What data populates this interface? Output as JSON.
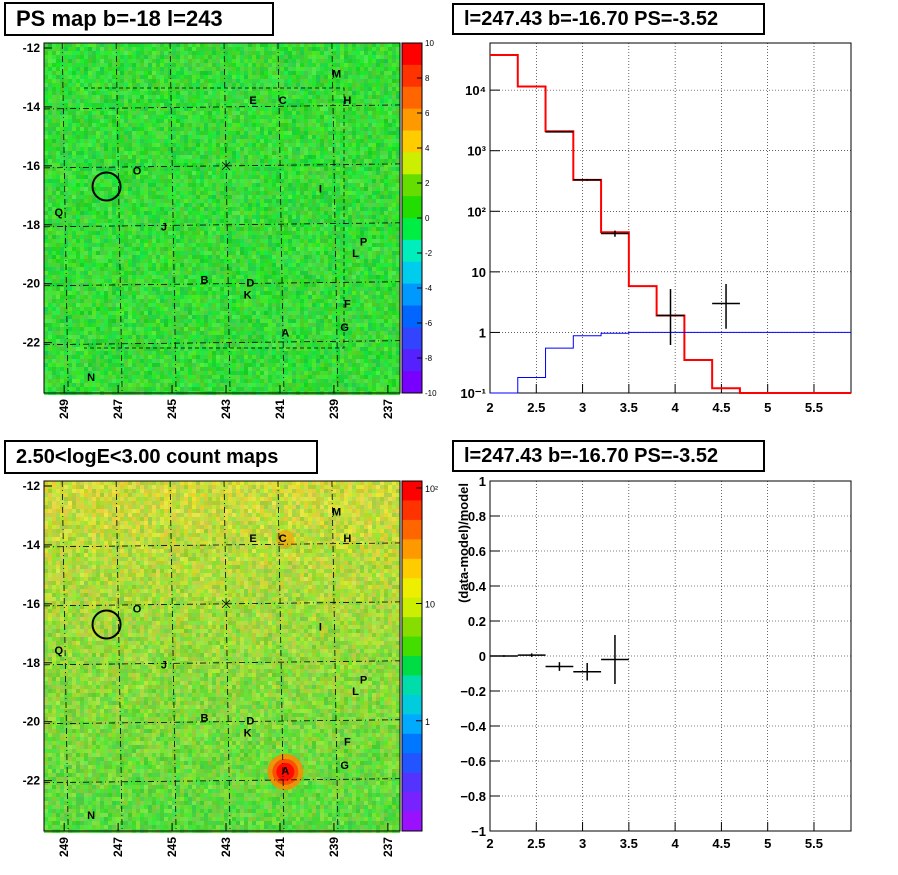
{
  "panels": {
    "ps_map_title": "PS map b=-18 l=243",
    "spectrum_title": "l=247.43 b=-16.70 PS=-3.52",
    "count_map_title": "2.50<logE<3.00 count maps",
    "residual_title": "l=247.43 b=-16.70 PS=-3.52"
  },
  "maps": {
    "x_ticks": [
      "249",
      "247",
      "245",
      "243",
      "241",
      "239",
      "237"
    ],
    "y_ticks": [
      "-12",
      "-14",
      "-16",
      "-18",
      "-20",
      "-22"
    ],
    "ps_colorbar_ticks": [
      "10",
      "8",
      "6",
      "4",
      "2",
      "0",
      "-2",
      "-4",
      "-6",
      "-8",
      "-10"
    ],
    "count_colorbar_ticks": [
      "10²",
      "10",
      "1"
    ],
    "sources": [
      {
        "label": "M",
        "l": 238.9,
        "b": -12.9
      },
      {
        "label": "E",
        "l": 242.0,
        "b": -13.8
      },
      {
        "label": "C",
        "l": 240.9,
        "b": -13.8
      },
      {
        "label": "H",
        "l": 238.5,
        "b": -13.8
      },
      {
        "label": "O",
        "l": 246.3,
        "b": -16.2
      },
      {
        "label": "I",
        "l": 239.5,
        "b": -16.8
      },
      {
        "label": "Q",
        "l": 249.2,
        "b": -17.6
      },
      {
        "label": "J",
        "l": 245.3,
        "b": -18.1
      },
      {
        "label": "P",
        "l": 237.9,
        "b": -18.6
      },
      {
        "label": "L",
        "l": 238.2,
        "b": -19.0
      },
      {
        "label": "B",
        "l": 243.8,
        "b": -19.9
      },
      {
        "label": "D",
        "l": 242.1,
        "b": -20.0
      },
      {
        "label": "K",
        "l": 242.2,
        "b": -20.4
      },
      {
        "label": "F",
        "l": 238.5,
        "b": -20.7
      },
      {
        "label": "G",
        "l": 238.6,
        "b": -21.5
      },
      {
        "label": "A",
        "l": 240.8,
        "b": -21.7
      },
      {
        "label": "N",
        "l": 248.0,
        "b": -23.2
      }
    ],
    "circle": {
      "l": 247.43,
      "b": -16.7
    }
  },
  "chart_data": [
    {
      "type": "line",
      "title": "l=247.43 b=-16.70 PS=-3.52",
      "xlim": [
        2,
        5.9
      ],
      "ylim": [
        0.1,
        60000
      ],
      "yscale": "log",
      "x_ticks": [
        "2",
        "2.5",
        "3",
        "3.5",
        "4",
        "4.5",
        "5",
        "5.5"
      ],
      "y_ticks": [
        "10⁻¹",
        "1",
        "10",
        "10²",
        "10³",
        "10⁴"
      ],
      "grid": true,
      "series": [
        {
          "role": "model",
          "color": "#ff0000",
          "edges": [
            2.0,
            2.3,
            2.6,
            2.9,
            3.2,
            3.5,
            3.8,
            4.1,
            4.4,
            4.7,
            5.0,
            5.3,
            5.6,
            5.9
          ],
          "values": [
            38000,
            11500,
            2100,
            330,
            45,
            5.8,
            1.9,
            0.35,
            0.12,
            0.1,
            0.1,
            0.1,
            0.1
          ]
        },
        {
          "role": "source",
          "color": "#0000ff",
          "edges": [
            2.0,
            2.3,
            2.6,
            2.9,
            3.2,
            3.5,
            3.8,
            4.1,
            4.4,
            4.7,
            5.0,
            5.3,
            5.6,
            5.9
          ],
          "values": [
            0.1,
            0.18,
            0.55,
            0.88,
            0.97,
            1.0,
            1.0,
            1.0,
            1.0,
            1.0,
            1.0,
            1.0,
            1.0
          ]
        },
        {
          "role": "data",
          "color": "#000000",
          "points": [
            {
              "x": 2.75,
              "y": 2050,
              "xerr": 0.15,
              "ylo": 2000,
              "yhi": 2100
            },
            {
              "x": 3.05,
              "y": 330,
              "xerr": 0.15,
              "ylo": 318,
              "yhi": 342
            },
            {
              "x": 3.35,
              "y": 43,
              "xerr": 0.15,
              "ylo": 38,
              "yhi": 48
            },
            {
              "x": 3.95,
              "y": 1.9,
              "xerr": 0.15,
              "ylo": 0.62,
              "yhi": 5.2
            },
            {
              "x": 4.55,
              "y": 3.0,
              "xerr": 0.15,
              "ylo": 1.15,
              "yhi": 6.3
            }
          ]
        }
      ]
    },
    {
      "type": "scatter",
      "title": "l=247.43 b=-16.70 PS=-3.52",
      "ylabel": "(data-model)/model",
      "xlim": [
        2,
        5.9
      ],
      "ylim": [
        -1,
        1
      ],
      "x_ticks": [
        "2",
        "2.5",
        "3",
        "3.5",
        "4",
        "4.5",
        "5",
        "5.5"
      ],
      "y_ticks": [
        "1",
        "0.8",
        "0.6",
        "0.4",
        "0.2",
        "0",
        "−0.2",
        "−0.4",
        "−0.6",
        "−0.8",
        "−1"
      ],
      "grid": true,
      "points": [
        {
          "x": 2.15,
          "y": 0.0,
          "xerr": 0.15,
          "yerr": 0.005
        },
        {
          "x": 2.45,
          "y": 0.005,
          "xerr": 0.15,
          "yerr": 0.01
        },
        {
          "x": 2.75,
          "y": -0.06,
          "xerr": 0.15,
          "yerr": 0.025
        },
        {
          "x": 3.05,
          "y": -0.09,
          "xerr": 0.15,
          "yerr": 0.05
        },
        {
          "x": 3.35,
          "y": -0.02,
          "xerr": 0.15,
          "yerr": 0.14
        }
      ]
    }
  ]
}
